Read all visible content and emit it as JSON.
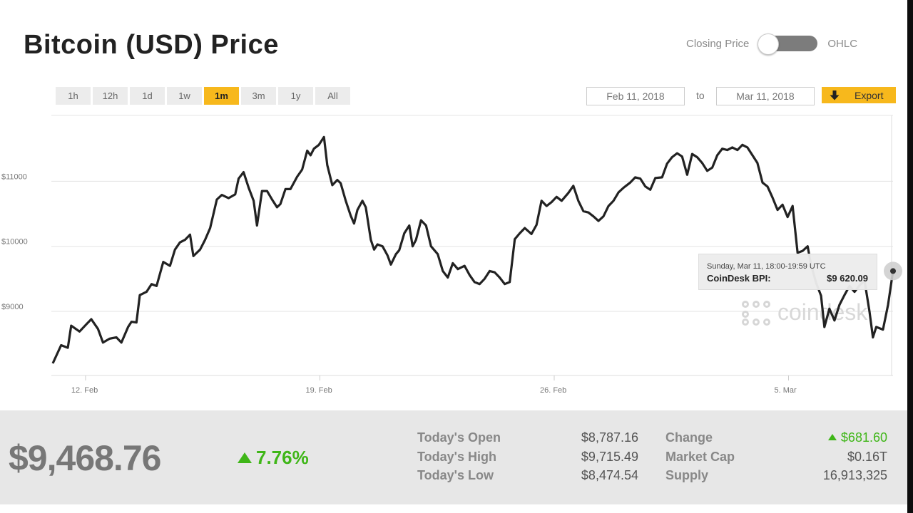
{
  "title": "Bitcoin (USD) Price",
  "toggle": {
    "left_label": "Closing Price",
    "right_label": "OHLC",
    "selected": "Closing Price"
  },
  "range_tabs": [
    {
      "label": "1h"
    },
    {
      "label": "12h"
    },
    {
      "label": "1d"
    },
    {
      "label": "1w"
    },
    {
      "label": "1m",
      "active": true
    },
    {
      "label": "3m"
    },
    {
      "label": "1y"
    },
    {
      "label": "All"
    }
  ],
  "date_range": {
    "from": "Feb 11, 2018",
    "to_label": "to",
    "to": "Mar 11, 2018"
  },
  "export_label": "Export",
  "tooltip": {
    "date": "Sunday, Mar 11, 18:00-19:59 UTC",
    "label": "CoinDesk BPI:",
    "value": "$9 620.09"
  },
  "watermark": "coindesk",
  "colors": {
    "accent": "#f7b81c",
    "line": "#222222",
    "positive": "#3fb618"
  },
  "chart_data": {
    "type": "line",
    "title": "",
    "xlabel": "",
    "ylabel": "",
    "xlim": [
      "2018-02-11",
      "2018-03-11"
    ],
    "ylim": [
      8000,
      11800
    ],
    "x_ticks": [
      {
        "label": "12. Feb",
        "day": 1.0
      },
      {
        "label": "19. Feb",
        "day": 8.0
      },
      {
        "label": "26. Feb",
        "day": 15.0
      },
      {
        "label": "5. Mar",
        "day": 22.0
      }
    ],
    "y_ticks": [
      {
        "label": "$9000",
        "value": 9000
      },
      {
        "label": "$10000",
        "value": 10000
      },
      {
        "label": "$11000",
        "value": 11000
      }
    ],
    "grid": true,
    "series": [
      {
        "points": [
          [
            0.0,
            8200
          ],
          [
            0.25,
            8480
          ],
          [
            0.45,
            8440
          ],
          [
            0.55,
            8780
          ],
          [
            0.8,
            8690
          ],
          [
            1.0,
            8800
          ],
          [
            1.15,
            8880
          ],
          [
            1.35,
            8730
          ],
          [
            1.5,
            8520
          ],
          [
            1.7,
            8580
          ],
          [
            1.9,
            8600
          ],
          [
            2.05,
            8520
          ],
          [
            2.25,
            8760
          ],
          [
            2.35,
            8840
          ],
          [
            2.5,
            8830
          ],
          [
            2.6,
            9250
          ],
          [
            2.8,
            9300
          ],
          [
            2.95,
            9420
          ],
          [
            3.1,
            9390
          ],
          [
            3.3,
            9760
          ],
          [
            3.5,
            9700
          ],
          [
            3.65,
            9950
          ],
          [
            3.8,
            10060
          ],
          [
            3.95,
            10100
          ],
          [
            4.1,
            10180
          ],
          [
            4.2,
            9850
          ],
          [
            4.4,
            9950
          ],
          [
            4.55,
            10100
          ],
          [
            4.7,
            10280
          ],
          [
            4.9,
            10720
          ],
          [
            5.05,
            10790
          ],
          [
            5.25,
            10740
          ],
          [
            5.45,
            10800
          ],
          [
            5.55,
            11040
          ],
          [
            5.7,
            11140
          ],
          [
            5.85,
            10900
          ],
          [
            6.0,
            10700
          ],
          [
            6.1,
            10320
          ],
          [
            6.25,
            10850
          ],
          [
            6.4,
            10850
          ],
          [
            6.55,
            10720
          ],
          [
            6.7,
            10600
          ],
          [
            6.8,
            10650
          ],
          [
            6.95,
            10880
          ],
          [
            7.1,
            10880
          ],
          [
            7.3,
            11070
          ],
          [
            7.45,
            11180
          ],
          [
            7.6,
            11470
          ],
          [
            7.7,
            11400
          ],
          [
            7.8,
            11500
          ],
          [
            7.95,
            11560
          ],
          [
            8.1,
            11680
          ],
          [
            8.2,
            11250
          ],
          [
            8.35,
            10940
          ],
          [
            8.5,
            11020
          ],
          [
            8.6,
            10970
          ],
          [
            8.75,
            10700
          ],
          [
            8.9,
            10470
          ],
          [
            9.0,
            10350
          ],
          [
            9.1,
            10560
          ],
          [
            9.25,
            10700
          ],
          [
            9.35,
            10600
          ],
          [
            9.5,
            10100
          ],
          [
            9.6,
            9950
          ],
          [
            9.7,
            10030
          ],
          [
            9.85,
            10000
          ],
          [
            10.0,
            9860
          ],
          [
            10.1,
            9720
          ],
          [
            10.25,
            9880
          ],
          [
            10.35,
            9940
          ],
          [
            10.5,
            10200
          ],
          [
            10.65,
            10320
          ],
          [
            10.75,
            10000
          ],
          [
            10.85,
            10100
          ],
          [
            11.0,
            10400
          ],
          [
            11.15,
            10320
          ],
          [
            11.3,
            10000
          ],
          [
            11.5,
            9880
          ],
          [
            11.65,
            9620
          ],
          [
            11.8,
            9520
          ],
          [
            11.95,
            9740
          ],
          [
            12.1,
            9650
          ],
          [
            12.3,
            9700
          ],
          [
            12.45,
            9560
          ],
          [
            12.6,
            9450
          ],
          [
            12.75,
            9420
          ],
          [
            12.9,
            9500
          ],
          [
            13.05,
            9620
          ],
          [
            13.2,
            9600
          ],
          [
            13.35,
            9520
          ],
          [
            13.5,
            9420
          ],
          [
            13.65,
            9450
          ],
          [
            13.8,
            10110
          ],
          [
            13.95,
            10200
          ],
          [
            14.1,
            10280
          ],
          [
            14.3,
            10190
          ],
          [
            14.45,
            10330
          ],
          [
            14.6,
            10700
          ],
          [
            14.75,
            10620
          ],
          [
            14.9,
            10680
          ],
          [
            15.05,
            10760
          ],
          [
            15.2,
            10700
          ],
          [
            15.4,
            10820
          ],
          [
            15.55,
            10930
          ],
          [
            15.7,
            10700
          ],
          [
            15.85,
            10540
          ],
          [
            16.0,
            10520
          ],
          [
            16.15,
            10460
          ],
          [
            16.3,
            10390
          ],
          [
            16.45,
            10460
          ],
          [
            16.6,
            10620
          ],
          [
            16.75,
            10700
          ],
          [
            16.9,
            10830
          ],
          [
            17.05,
            10900
          ],
          [
            17.25,
            10980
          ],
          [
            17.4,
            11060
          ],
          [
            17.55,
            11040
          ],
          [
            17.7,
            10920
          ],
          [
            17.85,
            10870
          ],
          [
            18.0,
            11050
          ],
          [
            18.2,
            11060
          ],
          [
            18.35,
            11270
          ],
          [
            18.5,
            11370
          ],
          [
            18.65,
            11430
          ],
          [
            18.8,
            11380
          ],
          [
            18.95,
            11100
          ],
          [
            19.1,
            11420
          ],
          [
            19.25,
            11370
          ],
          [
            19.4,
            11280
          ],
          [
            19.55,
            11160
          ],
          [
            19.7,
            11210
          ],
          [
            19.85,
            11400
          ],
          [
            20.0,
            11500
          ],
          [
            20.15,
            11480
          ],
          [
            20.3,
            11520
          ],
          [
            20.45,
            11480
          ],
          [
            20.6,
            11560
          ],
          [
            20.75,
            11520
          ],
          [
            20.9,
            11400
          ],
          [
            21.05,
            11280
          ],
          [
            21.2,
            10980
          ],
          [
            21.35,
            10920
          ],
          [
            21.5,
            10750
          ],
          [
            21.65,
            10560
          ],
          [
            21.8,
            10640
          ],
          [
            21.95,
            10450
          ],
          [
            22.1,
            10620
          ],
          [
            22.25,
            9900
          ],
          [
            22.4,
            9930
          ],
          [
            22.55,
            10000
          ],
          [
            22.65,
            9720
          ],
          [
            22.8,
            9440
          ],
          [
            22.95,
            9240
          ],
          [
            23.05,
            8760
          ],
          [
            23.2,
            9040
          ],
          [
            23.35,
            8860
          ],
          [
            23.5,
            9100
          ],
          [
            23.65,
            9250
          ],
          [
            23.8,
            9390
          ],
          [
            23.95,
            9300
          ],
          [
            24.1,
            9400
          ],
          [
            24.25,
            9470
          ],
          [
            24.4,
            8990
          ],
          [
            24.5,
            8600
          ],
          [
            24.6,
            8760
          ],
          [
            24.8,
            8720
          ],
          [
            24.95,
            9100
          ],
          [
            25.0,
            9270
          ],
          [
            25.1,
            9620
          ]
        ]
      }
    ]
  },
  "summary": {
    "price": "$9,468.76",
    "change_pct": "7.76%",
    "stats_left": [
      {
        "label": "Today's Open",
        "value": "$8,787.16"
      },
      {
        "label": "Today's High",
        "value": "$9,715.49"
      },
      {
        "label": "Today's Low",
        "value": "$8,474.54"
      }
    ],
    "stats_right": [
      {
        "label": "Change",
        "value": "$681.60"
      },
      {
        "label": "Market Cap",
        "value": "$0.16T"
      },
      {
        "label": "Supply",
        "value": "16,913,325"
      }
    ]
  }
}
